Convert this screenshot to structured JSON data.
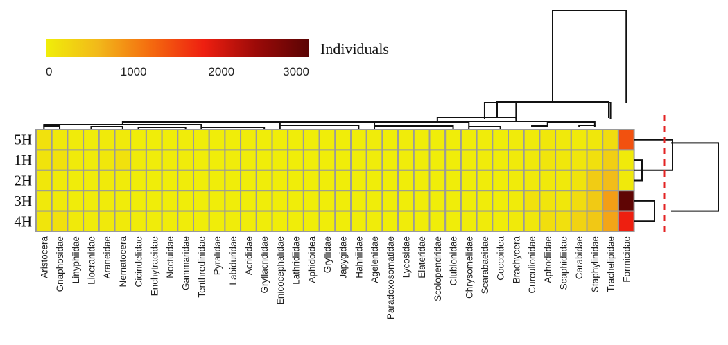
{
  "chart_data": {
    "type": "heatmap",
    "legend_label": "Individuals",
    "color_scale": {
      "min": 0,
      "max": 3000,
      "ticks": [
        0,
        1000,
        2000,
        3000
      ],
      "colors": [
        "#f0ee09",
        "#f2b81a",
        "#f46a0f",
        "#ee1f10",
        "#9b0a08",
        "#5a0404"
      ]
    },
    "rows": [
      "5H",
      "1H",
      "2H",
      "3H",
      "4H"
    ],
    "columns": [
      "Aristocera",
      "Gnaphosidae",
      "Linyphiidae",
      "Liocranidae",
      "Araneidae",
      "Nematocera",
      "Cicindelidae",
      "Enchytraeidae",
      "Noctuidae",
      "Gammaridae",
      "Tenthredinidae",
      "Pyralidae",
      "Labiduridae",
      "Acrididae",
      "Gryllacrididae",
      "Enicocephalidae",
      "Lathridiidae",
      "Aphidoidea",
      "Gryllidae",
      "Japygidae",
      "Hahniidae",
      "Agelenidae",
      "Paradoxosomatidae",
      "Lycosidae",
      "Elateridae",
      "Scolopendridae",
      "Clubionidae",
      "Chrysomelidae",
      "Scarabaeidae",
      "Coccoidea",
      "Brachycera",
      "Curculionidae",
      "Aphodiidae",
      "Scaphidiidae",
      "Carabidae",
      "Staphylinidae",
      "Trachelipidae",
      "Formicidae"
    ],
    "values": [
      [
        150,
        60,
        30,
        20,
        50,
        40,
        10,
        10,
        10,
        20,
        10,
        10,
        10,
        20,
        10,
        10,
        10,
        10,
        10,
        10,
        10,
        20,
        10,
        20,
        10,
        10,
        10,
        20,
        20,
        10,
        30,
        40,
        80,
        60,
        50,
        80,
        200,
        1400
      ],
      [
        120,
        150,
        40,
        30,
        80,
        150,
        30,
        20,
        20,
        30,
        10,
        10,
        20,
        20,
        10,
        10,
        10,
        10,
        10,
        10,
        10,
        20,
        10,
        20,
        10,
        10,
        10,
        20,
        30,
        20,
        40,
        60,
        100,
        80,
        90,
        160,
        350,
        40
      ],
      [
        80,
        50,
        20,
        20,
        40,
        30,
        10,
        10,
        10,
        20,
        10,
        10,
        10,
        10,
        10,
        10,
        10,
        10,
        10,
        10,
        10,
        10,
        10,
        10,
        10,
        10,
        10,
        10,
        20,
        10,
        30,
        60,
        60,
        60,
        120,
        380,
        550,
        60
      ],
      [
        60,
        50,
        20,
        20,
        30,
        20,
        10,
        10,
        10,
        10,
        10,
        10,
        10,
        10,
        10,
        10,
        10,
        10,
        10,
        10,
        10,
        10,
        10,
        10,
        10,
        10,
        10,
        10,
        20,
        10,
        30,
        150,
        100,
        80,
        200,
        400,
        800,
        2950
      ],
      [
        100,
        160,
        40,
        30,
        60,
        50,
        20,
        20,
        20,
        20,
        10,
        10,
        20,
        20,
        10,
        10,
        10,
        10,
        10,
        10,
        10,
        20,
        10,
        20,
        10,
        10,
        10,
        20,
        30,
        20,
        50,
        80,
        180,
        160,
        300,
        420,
        750,
        1800
      ]
    ]
  }
}
